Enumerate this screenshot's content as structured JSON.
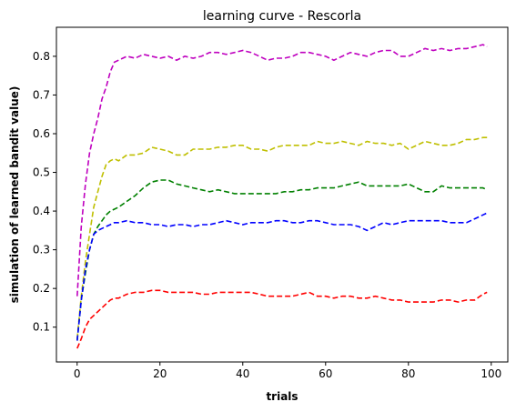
{
  "chart_data": {
    "type": "line",
    "title": "learning curve - Rescorla",
    "xlabel": "trials",
    "ylabel": "simulation of learned bandit value)",
    "xlim": [
      -5,
      104
    ],
    "ylim": [
      0.01,
      0.875
    ],
    "xticks": [
      0,
      20,
      40,
      60,
      80,
      100
    ],
    "yticks": [
      0.1,
      0.2,
      0.3,
      0.4,
      0.5,
      0.6,
      0.7,
      0.8
    ],
    "grid": false,
    "legend": "none",
    "line_style": "dashed",
    "series": [
      {
        "color": "#bf00bf",
        "x": [
          0,
          1,
          2,
          3,
          4,
          5,
          6,
          7,
          8,
          9,
          10,
          12,
          14,
          16,
          18,
          20,
          22,
          24,
          26,
          28,
          30,
          32,
          34,
          36,
          38,
          40,
          42,
          44,
          46,
          48,
          50,
          52,
          54,
          56,
          58,
          60,
          62,
          64,
          66,
          68,
          70,
          72,
          74,
          76,
          78,
          80,
          82,
          84,
          86,
          88,
          90,
          92,
          94,
          96,
          98,
          99
        ],
        "values": [
          0.18,
          0.36,
          0.47,
          0.55,
          0.6,
          0.64,
          0.69,
          0.72,
          0.76,
          0.785,
          0.79,
          0.8,
          0.795,
          0.805,
          0.8,
          0.795,
          0.8,
          0.79,
          0.8,
          0.795,
          0.8,
          0.81,
          0.81,
          0.805,
          0.81,
          0.815,
          0.81,
          0.8,
          0.79,
          0.795,
          0.795,
          0.8,
          0.81,
          0.81,
          0.805,
          0.8,
          0.79,
          0.8,
          0.81,
          0.805,
          0.8,
          0.81,
          0.815,
          0.815,
          0.8,
          0.8,
          0.81,
          0.82,
          0.815,
          0.82,
          0.815,
          0.82,
          0.82,
          0.825,
          0.83,
          0.825
        ]
      },
      {
        "color": "#bfbf00",
        "x": [
          0,
          1,
          2,
          3,
          4,
          5,
          6,
          7,
          8,
          9,
          10,
          12,
          14,
          16,
          18,
          20,
          22,
          24,
          26,
          28,
          30,
          32,
          34,
          36,
          38,
          40,
          42,
          44,
          46,
          48,
          50,
          52,
          54,
          56,
          58,
          60,
          62,
          64,
          66,
          68,
          70,
          72,
          74,
          76,
          78,
          80,
          82,
          84,
          86,
          88,
          90,
          92,
          94,
          96,
          98,
          99
        ],
        "values": [
          0.07,
          0.18,
          0.27,
          0.34,
          0.41,
          0.45,
          0.49,
          0.52,
          0.53,
          0.535,
          0.53,
          0.545,
          0.545,
          0.55,
          0.565,
          0.56,
          0.555,
          0.545,
          0.545,
          0.56,
          0.56,
          0.56,
          0.565,
          0.565,
          0.57,
          0.57,
          0.56,
          0.56,
          0.555,
          0.565,
          0.57,
          0.57,
          0.57,
          0.57,
          0.58,
          0.575,
          0.575,
          0.58,
          0.575,
          0.57,
          0.58,
          0.575,
          0.575,
          0.57,
          0.575,
          0.56,
          0.57,
          0.58,
          0.575,
          0.57,
          0.57,
          0.575,
          0.585,
          0.585,
          0.59,
          0.59
        ]
      },
      {
        "color": "#008000",
        "x": [
          0,
          1,
          2,
          3,
          4,
          5,
          6,
          7,
          8,
          9,
          10,
          12,
          14,
          16,
          18,
          20,
          22,
          24,
          26,
          28,
          30,
          32,
          34,
          36,
          38,
          40,
          42,
          44,
          46,
          48,
          50,
          52,
          54,
          56,
          58,
          60,
          62,
          64,
          66,
          68,
          70,
          72,
          74,
          76,
          78,
          80,
          82,
          84,
          86,
          88,
          90,
          92,
          94,
          96,
          98,
          99
        ],
        "values": [
          0.065,
          0.17,
          0.24,
          0.3,
          0.34,
          0.36,
          0.375,
          0.39,
          0.4,
          0.405,
          0.41,
          0.425,
          0.44,
          0.46,
          0.475,
          0.48,
          0.48,
          0.47,
          0.465,
          0.46,
          0.455,
          0.45,
          0.455,
          0.45,
          0.445,
          0.445,
          0.445,
          0.445,
          0.445,
          0.445,
          0.45,
          0.45,
          0.455,
          0.455,
          0.46,
          0.46,
          0.46,
          0.465,
          0.47,
          0.475,
          0.465,
          0.465,
          0.465,
          0.465,
          0.465,
          0.47,
          0.46,
          0.45,
          0.45,
          0.465,
          0.46,
          0.46,
          0.46,
          0.46,
          0.46,
          0.455
        ]
      },
      {
        "color": "#0000ff",
        "x": [
          0,
          1,
          2,
          3,
          4,
          5,
          6,
          7,
          8,
          9,
          10,
          12,
          14,
          16,
          18,
          20,
          22,
          24,
          26,
          28,
          30,
          32,
          34,
          36,
          38,
          40,
          42,
          44,
          46,
          48,
          50,
          52,
          54,
          56,
          58,
          60,
          62,
          64,
          66,
          68,
          70,
          72,
          74,
          76,
          78,
          80,
          82,
          84,
          86,
          88,
          90,
          92,
          94,
          96,
          98,
          99
        ],
        "values": [
          0.065,
          0.17,
          0.25,
          0.3,
          0.34,
          0.35,
          0.355,
          0.36,
          0.365,
          0.37,
          0.37,
          0.375,
          0.37,
          0.37,
          0.365,
          0.365,
          0.36,
          0.365,
          0.365,
          0.36,
          0.365,
          0.365,
          0.37,
          0.375,
          0.37,
          0.365,
          0.37,
          0.37,
          0.37,
          0.375,
          0.375,
          0.37,
          0.37,
          0.375,
          0.375,
          0.37,
          0.365,
          0.365,
          0.365,
          0.36,
          0.35,
          0.36,
          0.37,
          0.365,
          0.37,
          0.375,
          0.375,
          0.375,
          0.375,
          0.375,
          0.37,
          0.37,
          0.37,
          0.38,
          0.39,
          0.395
        ]
      },
      {
        "color": "#ff0000",
        "x": [
          0,
          1,
          2,
          3,
          4,
          5,
          6,
          7,
          8,
          9,
          10,
          12,
          14,
          16,
          18,
          20,
          22,
          24,
          26,
          28,
          30,
          32,
          34,
          36,
          38,
          40,
          42,
          44,
          46,
          48,
          50,
          52,
          54,
          56,
          58,
          60,
          62,
          64,
          66,
          68,
          70,
          72,
          74,
          76,
          78,
          80,
          82,
          84,
          86,
          88,
          90,
          92,
          94,
          96,
          98,
          99
        ],
        "values": [
          0.045,
          0.07,
          0.1,
          0.12,
          0.13,
          0.14,
          0.15,
          0.16,
          0.17,
          0.175,
          0.175,
          0.185,
          0.19,
          0.19,
          0.195,
          0.195,
          0.19,
          0.19,
          0.19,
          0.19,
          0.185,
          0.185,
          0.19,
          0.19,
          0.19,
          0.19,
          0.19,
          0.185,
          0.18,
          0.18,
          0.18,
          0.18,
          0.185,
          0.19,
          0.18,
          0.18,
          0.175,
          0.18,
          0.18,
          0.175,
          0.175,
          0.18,
          0.175,
          0.17,
          0.17,
          0.165,
          0.165,
          0.165,
          0.165,
          0.17,
          0.17,
          0.165,
          0.17,
          0.17,
          0.185,
          0.19
        ]
      }
    ]
  }
}
